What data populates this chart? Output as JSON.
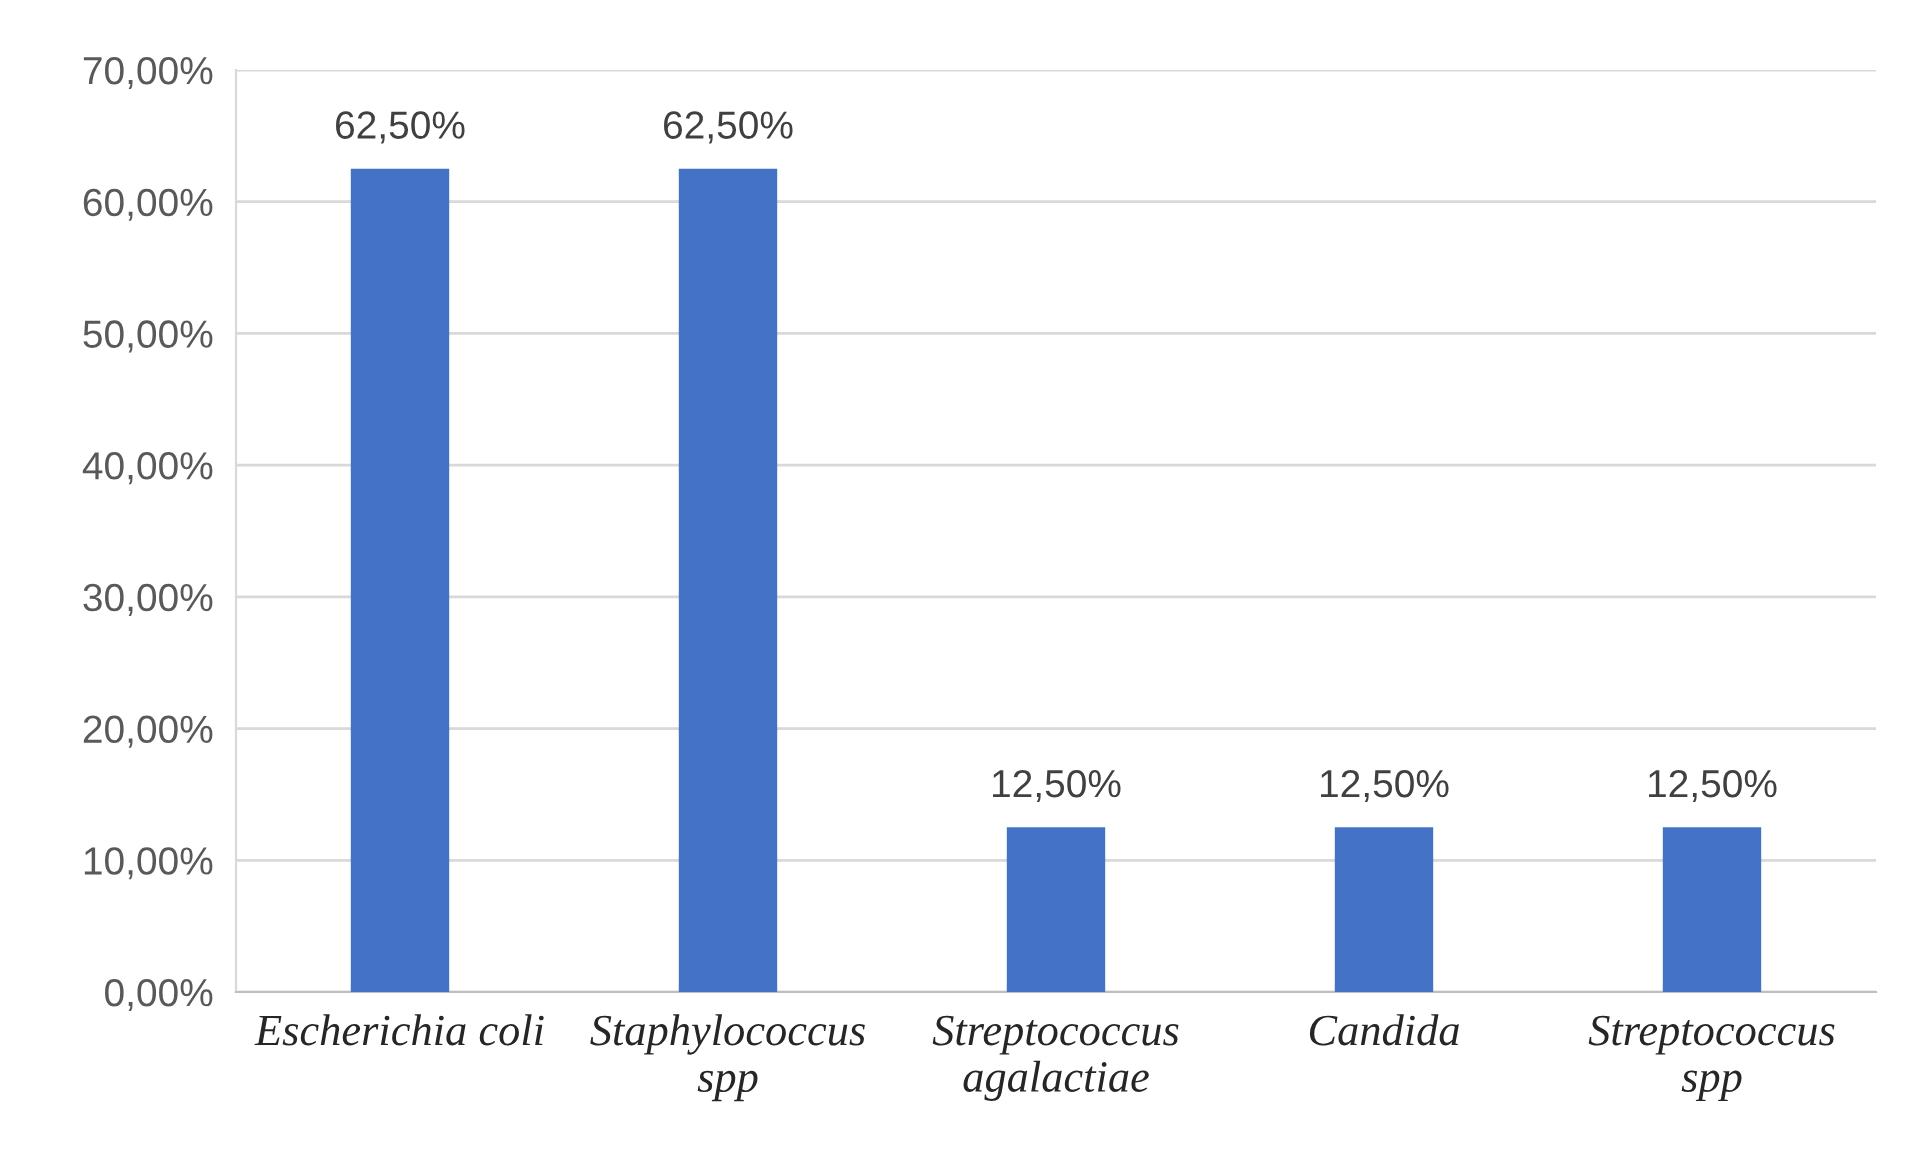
{
  "chart_data": {
    "type": "bar",
    "categories": [
      "Escherichia coli",
      "Staphylococcus\nspp",
      "Streptococcus\nagalactiae",
      "Candida",
      "Streptococcus\nspp"
    ],
    "values": [
      62.5,
      62.5,
      12.5,
      12.5,
      12.5
    ],
    "value_labels": [
      "62,50%",
      "62,50%",
      "12,50%",
      "12,50%",
      "12,50%"
    ],
    "color": "#4472c4",
    "ylim": [
      0,
      70
    ],
    "yticks": [
      {
        "value": 0,
        "label": "0,00%"
      },
      {
        "value": 10,
        "label": "10,00%"
      },
      {
        "value": 20,
        "label": "20,00%"
      },
      {
        "value": 30,
        "label": "30,00%"
      },
      {
        "value": 40,
        "label": "40,00%"
      },
      {
        "value": 50,
        "label": "50,00%"
      },
      {
        "value": 60,
        "label": "60,00%"
      },
      {
        "value": 70,
        "label": "70,00%"
      }
    ],
    "grid": "y"
  }
}
